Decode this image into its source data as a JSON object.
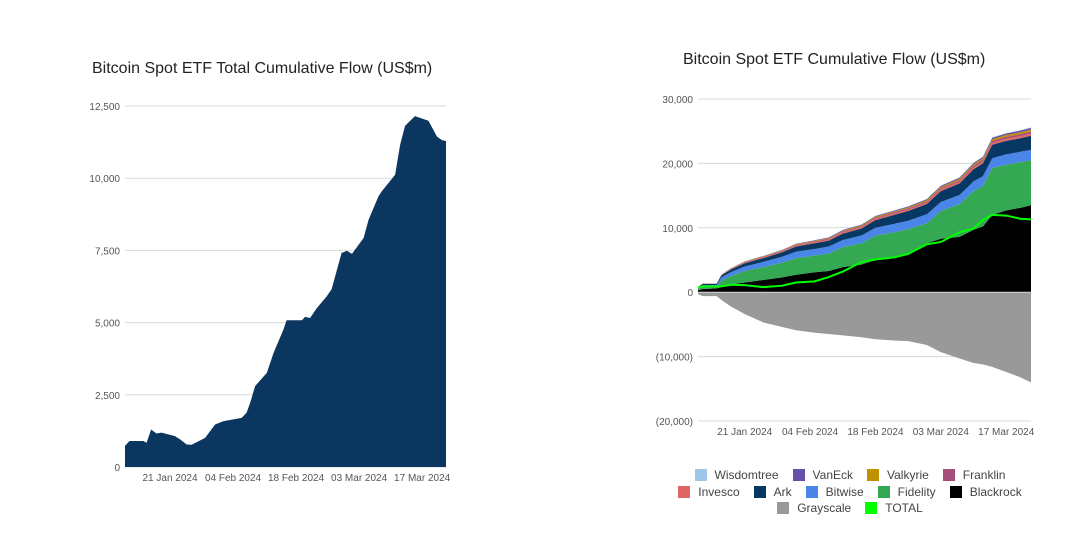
{
  "chart_data": [
    {
      "type": "area",
      "title": "Bitcoin Spot ETF Total Cumulative Flow (US$m)",
      "x_unit": "days since 11 Jan 2024",
      "xlim": [
        0,
        71.3
      ],
      "ylim": [
        0,
        12500
      ],
      "yticks": [
        0,
        2500,
        5000,
        7500,
        10000,
        12500
      ],
      "ytick_labels": [
        "0",
        "2,500",
        "5,000",
        "7,500",
        "10,000",
        "12,500"
      ],
      "xticks": [
        10,
        24,
        38,
        52,
        66
      ],
      "xtick_labels": [
        "21 Jan 2024",
        "04 Feb 2024",
        "18 Feb 2024",
        "03 Mar 2024",
        "17 Mar 2024"
      ],
      "grid": true,
      "color": "#0b365f",
      "x": [
        0,
        1,
        4.1,
        4.8,
        5.8,
        7,
        8.1,
        11.1,
        12.2,
        13.7,
        14.8,
        17.8,
        20,
        21.9,
        25.9,
        27,
        27.8,
        28.9,
        31.5,
        33,
        35.2,
        35.9,
        39.3,
        40,
        41.1,
        42.6,
        44.8,
        45.9,
        48.1,
        49.3,
        50.4,
        53,
        54.1,
        56.3,
        57,
        60,
        61.1,
        62.2,
        64.4,
        67.4,
        69.3,
        70.4,
        71.3
      ],
      "y": [
        730,
        900,
        900,
        840,
        1300,
        1160,
        1190,
        1070,
        960,
        780,
        770,
        1010,
        1470,
        1590,
        1700,
        1880,
        2220,
        2800,
        3260,
        3950,
        4760,
        5080,
        5080,
        5200,
        5160,
        5500,
        5910,
        6160,
        7410,
        7490,
        7380,
        7930,
        8560,
        9370,
        9540,
        10120,
        11150,
        11810,
        12150,
        11990,
        11440,
        11320,
        11290
      ]
    },
    {
      "type": "stacked-area",
      "title": "Bitcoin Spot ETF Cumulative Flow (US$m)",
      "x_unit": "days since 11 Jan 2024",
      "xlim": [
        0,
        71.3
      ],
      "ylim": [
        -20000,
        30000
      ],
      "yticks": [
        -20000,
        -10000,
        0,
        10000,
        20000,
        30000
      ],
      "ytick_labels": [
        "(20,000)",
        "(10,000)",
        "0",
        "10,000",
        "20,000",
        "30,000"
      ],
      "xticks": [
        10,
        24,
        38,
        52,
        66
      ],
      "xtick_labels": [
        "21 Jan 2024",
        "04 Feb 2024",
        "18 Feb 2024",
        "03 Mar 2024",
        "17 Mar 2024"
      ],
      "grid": true,
      "legend_position": "bottom",
      "x": [
        0,
        1,
        4,
        5,
        7,
        10,
        14,
        18,
        21,
        25,
        28,
        31,
        35,
        38,
        42,
        45,
        49,
        52,
        56,
        59,
        61,
        63,
        66,
        69,
        71.3
      ],
      "series": [
        {
          "name": "Blackrock",
          "color": "#000000",
          "values": [
            300,
            500,
            600,
            800,
            1200,
            1500,
            1900,
            2300,
            2700,
            3100,
            3300,
            3900,
            4300,
            5000,
            5500,
            5800,
            7600,
            8300,
            8600,
            9700,
            10200,
            12000,
            12700,
            13100,
            13500
          ]
        },
        {
          "name": "Fidelity",
          "color": "#34a853",
          "values": [
            200,
            300,
            200,
            1000,
            1300,
            1800,
            2000,
            2300,
            2600,
            2600,
            2700,
            3100,
            3300,
            3800,
            3800,
            4000,
            3100,
            4300,
            5100,
            6000,
            6300,
            7300,
            7100,
            7100,
            7000
          ]
        },
        {
          "name": "Bitwise",
          "color": "#4a86e8",
          "values": [
            200,
            300,
            300,
            500,
            600,
            700,
            800,
            900,
            1000,
            1000,
            1100,
            1100,
            1200,
            1200,
            1300,
            1300,
            1400,
            1400,
            1400,
            1500,
            1500,
            1500,
            1600,
            1600,
            1600
          ]
        },
        {
          "name": "Ark",
          "color": "#073763",
          "values": [
            100,
            200,
            200,
            300,
            400,
            500,
            600,
            700,
            800,
            900,
            900,
            1000,
            1100,
            1200,
            1400,
            1500,
            1600,
            1700,
            1800,
            1900,
            2000,
            2100,
            2100,
            2100,
            2200
          ]
        },
        {
          "name": "Invesco",
          "color": "#e06666",
          "values": [
            0,
            20,
            20,
            50,
            80,
            100,
            120,
            140,
            160,
            170,
            180,
            190,
            200,
            210,
            220,
            230,
            240,
            260,
            280,
            300,
            300,
            320,
            330,
            340,
            350
          ]
        },
        {
          "name": "Franklin",
          "color": "#a64d79",
          "values": [
            0,
            20,
            20,
            40,
            60,
            80,
            90,
            100,
            110,
            120,
            130,
            140,
            150,
            160,
            170,
            180,
            190,
            210,
            230,
            250,
            260,
            280,
            290,
            300,
            300
          ]
        },
        {
          "name": "Valkyrie",
          "color": "#bf9000",
          "values": [
            0,
            10,
            10,
            30,
            50,
            60,
            70,
            80,
            90,
            100,
            110,
            120,
            130,
            140,
            150,
            160,
            170,
            190,
            210,
            230,
            250,
            270,
            290,
            300,
            310
          ]
        },
        {
          "name": "VanEck",
          "color": "#674ea7",
          "values": [
            0,
            10,
            10,
            20,
            30,
            40,
            50,
            60,
            70,
            80,
            90,
            100,
            110,
            120,
            130,
            140,
            150,
            160,
            170,
            190,
            200,
            220,
            240,
            250,
            260
          ]
        },
        {
          "name": "Wisdomtree",
          "color": "#9fc5e8",
          "values": [
            0,
            5,
            5,
            10,
            10,
            20,
            20,
            20,
            30,
            30,
            30,
            30,
            40,
            40,
            40,
            50,
            50,
            50,
            60,
            60,
            60,
            70,
            70,
            70,
            80
          ]
        },
        {
          "name": "Grayscale",
          "color": "#999999",
          "values": [
            -300,
            -600,
            -600,
            -1200,
            -2200,
            -3400,
            -4700,
            -5400,
            -5900,
            -6300,
            -6500,
            -6700,
            -7000,
            -7300,
            -7500,
            -7600,
            -8200,
            -9300,
            -10300,
            -11000,
            -11200,
            -11600,
            -12400,
            -13200,
            -14000
          ]
        }
      ],
      "total": {
        "name": "TOTAL",
        "color": "#00ff00",
        "values": [
          730,
          900,
          900,
          900,
          1160,
          1100,
          780,
          1010,
          1500,
          1680,
          2350,
          3200,
          4700,
          5080,
          5400,
          5950,
          7450,
          7800,
          9300,
          9900,
          11200,
          12000,
          11900,
          11400,
          11300
        ]
      },
      "legend_rows": [
        [
          "Wisdomtree",
          "VanEck",
          "Valkyrie",
          "Franklin"
        ],
        [
          "Invesco",
          "Ark",
          "Bitwise",
          "Fidelity",
          "Blackrock"
        ],
        [
          "Grayscale",
          "TOTAL"
        ]
      ]
    }
  ]
}
